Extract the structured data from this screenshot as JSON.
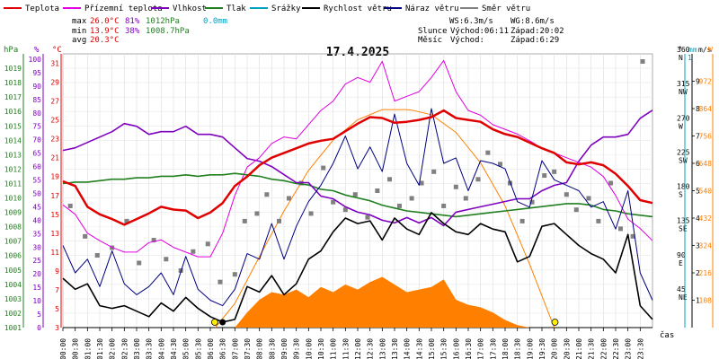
{
  "chart_data": {
    "type": "line",
    "title": "17.4.2025",
    "legend": [
      {
        "label": "Teplota",
        "color": "#e00000"
      },
      {
        "label": "Přízemní teplota",
        "color": "#e000e0"
      },
      {
        "label": "Vlhkost",
        "color": "#8000c0"
      },
      {
        "label": "Tlak",
        "color": "#208020"
      },
      {
        "label": "Srážky",
        "color": "#00a0c0"
      },
      {
        "label": "Rychlost větru",
        "color": "#000000"
      },
      {
        "label": "Náraz větru",
        "color": "#000080"
      },
      {
        "label": "Směr větru",
        "color": "#808080"
      }
    ],
    "stats": {
      "max": {
        "label": "max",
        "temp": "26.0°C",
        "hum": "81%",
        "press": "1012hPa",
        "rain": "0.0mm"
      },
      "min": {
        "label": "min",
        "temp": "13.9°C",
        "hum": "38%",
        "press": "1008.7hPa"
      },
      "avg": {
        "label": "avg",
        "temp": "20.3°C"
      },
      "ws": "WS:6.3m/s",
      "wg": "WG:8.6m/s",
      "sun_label": "Slunce",
      "sunrise": "Východ:06:11",
      "sunset": "Západ:20:02",
      "moon_label": "Měsíc",
      "moonrise": "Východ:",
      "moonset": "Západ:6:29"
    },
    "axes": {
      "hpa": {
        "unit": "hPa",
        "ticks": [
          1001,
          1002,
          1003,
          1004,
          1005,
          1006,
          1007,
          1008,
          1009,
          1010,
          1011,
          1012,
          1013,
          1014,
          1015,
          1016,
          1017,
          1018,
          1019
        ],
        "range": [
          1001,
          1020
        ]
      },
      "pct": {
        "unit": "%",
        "ticks": [
          0,
          5,
          10,
          15,
          20,
          25,
          30,
          35,
          40,
          45,
          50,
          55,
          60,
          65,
          70,
          75,
          80,
          85,
          90,
          95,
          100
        ],
        "range": [
          0,
          102
        ]
      },
      "temp": {
        "unit": "°C",
        "ticks": [
          3,
          5,
          7,
          9,
          11,
          13,
          15,
          17,
          19,
          21,
          23,
          25,
          27,
          29,
          31
        ],
        "range": [
          3,
          32
        ]
      },
      "dir": {
        "unit": "°",
        "ticks": [
          {
            "v": 45,
            "l": "NE"
          },
          {
            "v": 90,
            "l": "E"
          },
          {
            "v": 135,
            "l": "SE"
          },
          {
            "v": 180,
            "l": "S"
          },
          {
            "v": 225,
            "l": "SW"
          },
          {
            "v": 270,
            "l": "W"
          },
          {
            "v": 315,
            "l": "NW"
          },
          {
            "v": 360,
            "l": "N"
          }
        ],
        "range": [
          0,
          360
        ]
      },
      "wind": {
        "unit": "m/s",
        "ticks": [
          1,
          2,
          3,
          4,
          5,
          6,
          7,
          8,
          9
        ],
        "range": [
          0,
          10
        ]
      },
      "rain": {
        "unit": "mm",
        "top_label": "1"
      },
      "solar": {
        "unit": "W",
        "ticks": [
          108,
          216,
          324,
          432,
          540,
          648,
          756,
          864,
          972
        ],
        "range": [
          0,
          1080
        ]
      },
      "x_label": "čas",
      "x_ticks": [
        "00:00",
        "00:30",
        "01:00",
        "01:30",
        "02:00",
        "02:30",
        "03:00",
        "03:30",
        "04:00",
        "04:30",
        "05:00",
        "05:30",
        "06:00",
        "06:30",
        "07:00",
        "07:30",
        "08:00",
        "08:30",
        "09:00",
        "09:30",
        "10:00",
        "10:30",
        "11:00",
        "11:30",
        "12:00",
        "12:30",
        "13:00",
        "13:30",
        "14:00",
        "14:30",
        "15:00",
        "15:30",
        "16:00",
        "16:30",
        "17:00",
        "17:30",
        "18:00",
        "18:30",
        "19:00",
        "19:30",
        "20:00",
        "20:30",
        "21:00",
        "21:30",
        "22:00",
        "22:30",
        "23:00",
        "23:30"
      ]
    },
    "series": [
      {
        "name": "Teplota",
        "axis": "temp",
        "color": "#e00000",
        "x": [
          0,
          0.5,
          1,
          1.5,
          2,
          2.5,
          3,
          3.5,
          4,
          4.5,
          5,
          5.5,
          6,
          6.5,
          7,
          7.5,
          8,
          8.5,
          9,
          9.5,
          10,
          10.5,
          11,
          11.5,
          12,
          12.5,
          13,
          13.5,
          14,
          14.5,
          15,
          15.5,
          16,
          16.5,
          17,
          17.5,
          18,
          18.5,
          19,
          19.5,
          20,
          20.5,
          21,
          21.5,
          22,
          22.5,
          23,
          23.5,
          24
        ],
        "values": [
          18.5,
          18.0,
          15.8,
          15.0,
          14.5,
          13.9,
          14.5,
          15.1,
          15.8,
          15.5,
          15.4,
          14.6,
          15.2,
          16.2,
          18.0,
          19.0,
          20.2,
          21.0,
          21.5,
          22.0,
          22.5,
          22.8,
          23.0,
          23.8,
          24.6,
          25.3,
          25.2,
          24.7,
          24.8,
          25.0,
          25.3,
          26.0,
          25.2,
          25.0,
          24.8,
          24.0,
          23.5,
          23.2,
          22.6,
          22.0,
          21.5,
          20.5,
          20.3,
          20.5,
          20.2,
          19.3,
          18.0,
          16.5,
          16.2
        ]
      },
      {
        "name": "Přízemní teplota",
        "axis": "temp",
        "color": "#e000e0",
        "x": [
          0,
          0.5,
          1,
          1.5,
          2,
          2.5,
          3,
          3.5,
          4,
          4.5,
          5,
          5.5,
          6,
          6.5,
          7,
          7.5,
          8,
          8.5,
          9,
          9.5,
          10,
          10.5,
          11,
          11.5,
          12,
          12.5,
          13,
          13.5,
          14,
          14.5,
          15,
          15.5,
          16,
          16.5,
          17,
          17.5,
          18,
          18.5,
          19,
          19.5,
          20,
          20.5,
          21,
          21.5,
          22,
          22.5,
          23,
          23.5,
          24
        ],
        "values": [
          16.0,
          15.0,
          13.0,
          12.2,
          11.5,
          11.0,
          11.0,
          12.0,
          12.3,
          11.5,
          11.0,
          10.5,
          10.5,
          13.0,
          17.0,
          20.0,
          21.0,
          22.5,
          23.2,
          23.0,
          24.5,
          26.0,
          27.0,
          28.8,
          29.5,
          29.0,
          31.2,
          27.0,
          27.5,
          28.0,
          29.5,
          31.3,
          28.0,
          26.0,
          25.5,
          24.5,
          24.0,
          23.5,
          22.8,
          22.0,
          21.5,
          21.0,
          20.5,
          20.0,
          19.0,
          17.0,
          14.5,
          13.5,
          12.2
        ]
      },
      {
        "name": "Vlhkost",
        "axis": "pct",
        "color": "#8000c0",
        "x": [
          0,
          0.5,
          1,
          1.5,
          2,
          2.5,
          3,
          3.5,
          4,
          4.5,
          5,
          5.5,
          6,
          6.5,
          7,
          7.5,
          8,
          8.5,
          9,
          9.5,
          10,
          10.5,
          11,
          11.5,
          12,
          12.5,
          13,
          13.5,
          14,
          14.5,
          15,
          15.5,
          16,
          16.5,
          17,
          17.5,
          18,
          18.5,
          19,
          19.5,
          20,
          20.5,
          21,
          21.5,
          22,
          22.5,
          23,
          23.5,
          24
        ],
        "values": [
          66,
          67,
          69,
          71,
          73,
          76,
          75,
          72,
          73,
          73,
          75,
          72,
          72,
          71,
          67,
          63,
          62,
          60,
          57,
          54,
          54,
          49,
          48,
          45,
          43,
          42,
          40,
          39,
          41,
          39,
          41,
          38,
          43,
          44,
          45,
          46,
          47,
          48,
          48,
          51,
          53,
          54,
          62,
          68,
          71,
          71,
          72,
          78,
          81
        ]
      },
      {
        "name": "Tlak",
        "axis": "hpa",
        "color": "#208020",
        "x": [
          0,
          0.5,
          1,
          1.5,
          2,
          2.5,
          3,
          3.5,
          4,
          4.5,
          5,
          5.5,
          6,
          6.5,
          7,
          7.5,
          8,
          8.5,
          9,
          9.5,
          10,
          10.5,
          11,
          11.5,
          12,
          12.5,
          13,
          13.5,
          14,
          14.5,
          15,
          15.5,
          16,
          16.5,
          17,
          17.5,
          18,
          18.5,
          19,
          19.5,
          20,
          20.5,
          21,
          21.5,
          22,
          22.5,
          23,
          23.5,
          24
        ],
        "values": [
          1011.0,
          1011.1,
          1011.1,
          1011.2,
          1011.3,
          1011.3,
          1011.4,
          1011.4,
          1011.5,
          1011.5,
          1011.6,
          1011.5,
          1011.6,
          1011.6,
          1011.7,
          1011.6,
          1011.5,
          1011.3,
          1011.2,
          1011.0,
          1010.9,
          1010.6,
          1010.5,
          1010.2,
          1010.0,
          1009.8,
          1009.5,
          1009.3,
          1009.1,
          1009.0,
          1008.9,
          1008.8,
          1008.7,
          1008.8,
          1008.9,
          1009.0,
          1009.1,
          1009.2,
          1009.3,
          1009.4,
          1009.5,
          1009.6,
          1009.6,
          1009.5,
          1009.2,
          1009.1,
          1008.9,
          1008.8,
          1008.7
        ]
      },
      {
        "name": "Rychlost větru",
        "axis": "wind",
        "color": "#000000",
        "x": [
          0,
          0.5,
          1,
          1.5,
          2,
          2.5,
          3,
          3.5,
          4,
          4.5,
          5,
          5.5,
          6,
          6.5,
          7,
          7.5,
          8,
          8.5,
          9,
          9.5,
          10,
          10.5,
          11,
          11.5,
          12,
          12.5,
          13,
          13.5,
          14,
          14.5,
          15,
          15.5,
          16,
          16.5,
          17,
          17.5,
          18,
          18.5,
          19,
          19.5,
          20,
          20.5,
          21,
          21.5,
          22,
          22.5,
          23,
          23.5,
          24
        ],
        "values": [
          1.8,
          1.4,
          1.6,
          0.8,
          0.7,
          0.8,
          0.6,
          0.4,
          0.9,
          0.6,
          1.1,
          0.7,
          0.4,
          0.2,
          0.3,
          1.5,
          1.3,
          1.9,
          1.2,
          1.6,
          2.5,
          2.8,
          3.5,
          4.0,
          3.8,
          3.9,
          3.2,
          4.0,
          3.6,
          3.4,
          4.2,
          3.8,
          3.5,
          3.4,
          3.8,
          3.6,
          3.5,
          2.4,
          2.6,
          3.7,
          3.8,
          3.4,
          3.0,
          2.7,
          2.5,
          2.0,
          3.4,
          0.8,
          0.3
        ]
      },
      {
        "name": "Náraz větru",
        "axis": "wind",
        "color": "#000080",
        "x": [
          0,
          0.5,
          1,
          1.5,
          2,
          2.5,
          3,
          3.5,
          4,
          4.5,
          5,
          5.5,
          6,
          6.5,
          7,
          7.5,
          8,
          8.5,
          9,
          9.5,
          10,
          10.5,
          11,
          11.5,
          12,
          12.5,
          13,
          13.5,
          14,
          14.5,
          15,
          15.5,
          16,
          16.5,
          17,
          17.5,
          18,
          18.5,
          19,
          19.5,
          20,
          20.5,
          21,
          21.5,
          22,
          22.5,
          23,
          23.5,
          24
        ],
        "values": [
          3.0,
          2.0,
          2.5,
          1.5,
          2.8,
          1.6,
          1.2,
          1.5,
          2.0,
          1.2,
          2.6,
          1.4,
          1.0,
          0.8,
          1.4,
          2.7,
          2.5,
          3.8,
          2.5,
          3.7,
          4.6,
          5.2,
          6.0,
          7.0,
          5.8,
          6.6,
          5.7,
          7.8,
          6.0,
          5.2,
          8.0,
          6.0,
          6.2,
          5.0,
          6.1,
          6.0,
          5.8,
          4.6,
          4.4,
          6.1,
          5.4,
          5.2,
          5.0,
          4.4,
          4.6,
          3.6,
          5.0,
          2.0,
          1.0
        ]
      },
      {
        "name": "Směr větru",
        "axis": "dir",
        "color": "#808080",
        "mark": "square",
        "x": [
          0.3,
          0.9,
          1.4,
          2.0,
          2.6,
          3.1,
          3.7,
          4.2,
          4.8,
          5.3,
          5.9,
          6.4,
          7.0,
          7.4,
          7.9,
          8.3,
          8.8,
          9.2,
          9.7,
          10.1,
          10.6,
          11.0,
          11.5,
          11.9,
          12.4,
          12.8,
          13.3,
          13.7,
          14.2,
          14.6,
          15.1,
          15.5,
          16.0,
          16.4,
          16.9,
          17.3,
          17.8,
          18.2,
          18.7,
          19.1,
          19.6,
          20.0,
          20.5,
          20.9,
          21.4,
          21.8,
          22.3,
          22.7,
          23.2,
          23.6
        ],
        "values": [
          160,
          120,
          95,
          105,
          140,
          85,
          115,
          90,
          75,
          100,
          110,
          60,
          70,
          140,
          150,
          175,
          140,
          170,
          190,
          150,
          210,
          165,
          155,
          175,
          145,
          180,
          195,
          160,
          170,
          190,
          205,
          160,
          185,
          170,
          195,
          230,
          215,
          190,
          140,
          165,
          200,
          205,
          175,
          155,
          170,
          140,
          190,
          130,
          120,
          350
        ]
      },
      {
        "name": "Sluneční záření",
        "axis": "solar",
        "color": "#ff8000",
        "fill": true,
        "x": [
          7.0,
          7.5,
          8.0,
          8.5,
          9.0,
          9.5,
          10.0,
          10.5,
          11.0,
          11.5,
          12.0,
          12.5,
          13.0,
          13.5,
          14.0,
          14.5,
          15.0,
          15.5,
          16.0,
          16.5,
          17.0,
          17.5,
          18.0,
          18.5,
          19.0
        ],
        "values": [
          0,
          60,
          110,
          140,
          130,
          150,
          120,
          160,
          140,
          170,
          150,
          180,
          200,
          170,
          140,
          150,
          160,
          190,
          110,
          90,
          80,
          60,
          30,
          10,
          0
        ]
      },
      {
        "name": "Teoretické záření",
        "axis": "solar",
        "color": "#ff8000",
        "line_only": true,
        "x": [
          6.2,
          7,
          8,
          9,
          10,
          11,
          12,
          13,
          14,
          14.2,
          15,
          16,
          17,
          18,
          19,
          20.0
        ],
        "values": [
          0,
          95,
          280,
          460,
          620,
          740,
          820,
          860,
          860,
          858,
          840,
          770,
          650,
          480,
          250,
          0
        ]
      }
    ]
  }
}
